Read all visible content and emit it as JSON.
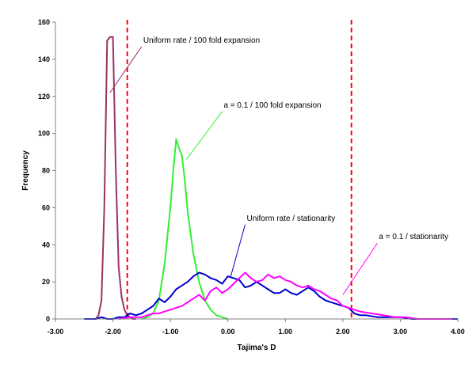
{
  "chart_data": {
    "type": "line",
    "title": "",
    "xlabel": "Tajima's D",
    "ylabel": "Frequency",
    "xlim": [
      -3.0,
      4.0
    ],
    "ylim": [
      0,
      160
    ],
    "x_ticks": [
      -3.0,
      -2.0,
      -1.0,
      0.0,
      1.0,
      2.0,
      3.0,
      4.0
    ],
    "x_tick_labels": [
      "-3.00",
      "-2.00",
      "-1.00",
      "0.00",
      "1.00",
      "2.00",
      "3.00",
      "4.00"
    ],
    "y_ticks": [
      0,
      20,
      40,
      60,
      80,
      100,
      120,
      140,
      160
    ],
    "y_tick_labels": [
      "0",
      "20",
      "40",
      "60",
      "80",
      "100",
      "120",
      "140",
      "160"
    ],
    "grid": false,
    "legend": "none",
    "series": [
      {
        "name": "Uniform rate / 100 fold expansion",
        "color": "#993366",
        "x": [
          -2.3,
          -2.25,
          -2.2,
          -2.15,
          -2.1,
          -2.05,
          -2.0,
          -1.95,
          -1.9,
          -1.85,
          -1.8,
          -1.75,
          -1.7,
          -1.65,
          -1.6
        ],
        "y": [
          0,
          2,
          10,
          60,
          150,
          152,
          152,
          80,
          28,
          12,
          5,
          2,
          1,
          0,
          0
        ]
      },
      {
        "name": "a = 0.1 / 100 fold expansion",
        "color": "#33ee33",
        "x": [
          -1.5,
          -1.4,
          -1.3,
          -1.2,
          -1.1,
          -1.0,
          -0.95,
          -0.9,
          -0.85,
          -0.8,
          -0.75,
          -0.7,
          -0.6,
          -0.5,
          -0.4,
          -0.3,
          -0.2,
          -0.1,
          0.0
        ],
        "y": [
          0,
          1,
          3,
          10,
          30,
          60,
          80,
          97,
          92,
          88,
          75,
          58,
          35,
          20,
          10,
          5,
          2,
          1,
          0
        ]
      },
      {
        "name": "Uniform rate / stationarity",
        "color": "#0000cc",
        "x": [
          -2.5,
          -2.3,
          -2.2,
          -2.1,
          -2.0,
          -1.9,
          -1.8,
          -1.7,
          -1.6,
          -1.5,
          -1.4,
          -1.3,
          -1.2,
          -1.1,
          -1.0,
          -0.9,
          -0.8,
          -0.7,
          -0.6,
          -0.5,
          -0.4,
          -0.3,
          -0.2,
          -0.1,
          0.0,
          0.1,
          0.2,
          0.3,
          0.4,
          0.5,
          0.6,
          0.7,
          0.8,
          0.9,
          1.0,
          1.1,
          1.2,
          1.3,
          1.4,
          1.5,
          1.6,
          1.7,
          1.8,
          1.9,
          2.0,
          2.1,
          2.2,
          2.3,
          2.4,
          2.6,
          2.8,
          3.0,
          3.2,
          3.5,
          3.8,
          4.0
        ],
        "y": [
          0,
          0,
          1,
          0,
          0,
          1,
          1,
          3,
          2,
          3,
          5,
          7,
          11,
          9,
          12,
          16,
          18,
          20,
          23,
          25,
          24,
          22,
          21,
          19,
          23,
          22,
          21,
          17,
          18,
          20,
          18,
          16,
          14,
          14,
          16,
          14,
          13,
          15,
          17,
          15,
          12,
          10,
          9,
          8,
          7,
          6,
          3,
          2,
          2,
          1,
          1,
          1,
          0,
          0,
          0,
          0
        ]
      },
      {
        "name": "a = 0.1 / stationarity",
        "color": "#ff00ff",
        "x": [
          -1.9,
          -1.7,
          -1.5,
          -1.4,
          -1.3,
          -1.2,
          -1.1,
          -1.0,
          -0.9,
          -0.8,
          -0.7,
          -0.6,
          -0.5,
          -0.4,
          -0.3,
          -0.2,
          -0.1,
          0.0,
          0.1,
          0.2,
          0.3,
          0.4,
          0.5,
          0.6,
          0.7,
          0.8,
          0.9,
          1.0,
          1.1,
          1.2,
          1.3,
          1.4,
          1.5,
          1.6,
          1.7,
          1.8,
          1.9,
          2.0,
          2.1,
          2.2,
          2.3,
          2.5,
          2.7,
          2.9,
          3.1,
          3.3,
          3.6,
          3.9
        ],
        "y": [
          0,
          1,
          1,
          2,
          3,
          3,
          4,
          5,
          6,
          7,
          9,
          11,
          13,
          10,
          15,
          17,
          14,
          16,
          19,
          22,
          25,
          22,
          20,
          21,
          24,
          22,
          23,
          21,
          20,
          18,
          17,
          18,
          16,
          15,
          13,
          11,
          10,
          7,
          6,
          5,
          4,
          3,
          2,
          1,
          1,
          0,
          0,
          0
        ]
      }
    ],
    "reference_lines": [
      {
        "x": -1.75,
        "color": "#ff0000",
        "style": "dashed"
      },
      {
        "x": 2.15,
        "color": "#ff0000",
        "style": "dashed"
      }
    ],
    "annotations": [
      {
        "text": "Uniform rate / 100 fold expansion",
        "color": "#993366",
        "pointer_to": [
          -2.05,
          122
        ],
        "anchor": [
          -1.5,
          149
        ]
      },
      {
        "text": "a = 0.1 / 100 fold expansion",
        "color": "#33ee33",
        "pointer_to": [
          -0.72,
          86
        ],
        "anchor": [
          -0.1,
          114
        ]
      },
      {
        "text": "Uniform rate / stationarity",
        "color": "#0000cc",
        "pointer_to": [
          0.05,
          23
        ],
        "anchor": [
          0.3,
          53
        ]
      },
      {
        "text": "a = 0.1 / stationarity",
        "color": "#ff00ff",
        "pointer_to": [
          2.0,
          13
        ],
        "anchor": [
          2.6,
          43
        ]
      }
    ]
  }
}
